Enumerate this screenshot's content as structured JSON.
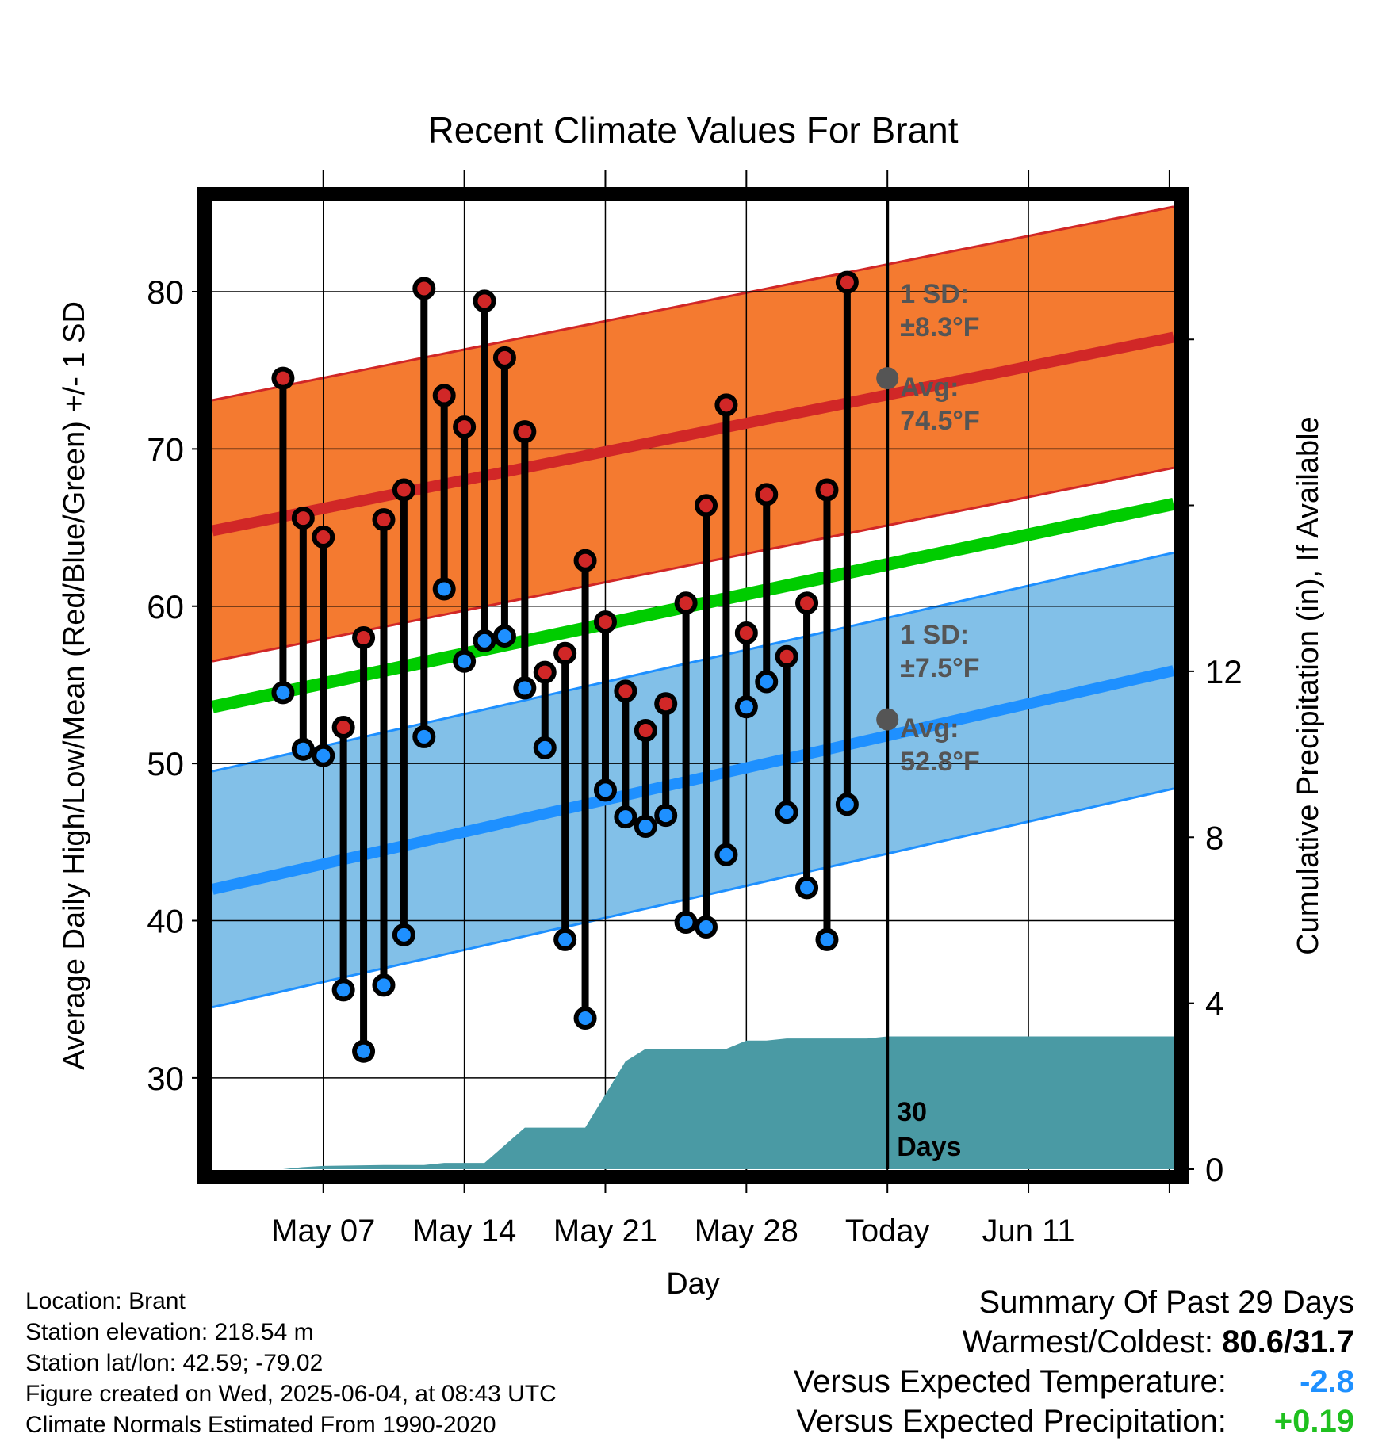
{
  "chart_data": {
    "type": "line",
    "title": "Recent Climate Values For Brant",
    "xlabel": "Day",
    "ylabel": "Average Daily High/Low/Mean (Red/Blue/Green) +/- 1 SD",
    "y2label": "Cumulative Precipitation (in), If Available",
    "x_range_days": [
      -33.5,
      14.2
    ],
    "x_ticks": [
      {
        "day": -28,
        "label": "May 07"
      },
      {
        "day": -21,
        "label": "May 14"
      },
      {
        "day": -14,
        "label": "May 21"
      },
      {
        "day": -7,
        "label": "May 28"
      },
      {
        "day": 0,
        "label": "Today"
      },
      {
        "day": 7,
        "label": "Jun 11"
      }
    ],
    "ylim": [
      24.2,
      86.2
    ],
    "y_ticks": [
      30,
      40,
      50,
      60,
      70,
      80
    ],
    "y2lim": [
      0,
      23.5
    ],
    "y2_ticks": [
      0,
      4,
      8,
      12
    ],
    "grid": true,
    "today_line_label": "30\nDays",
    "high_normal": {
      "start": 64.8,
      "end": 77.1,
      "sd": 8.3
    },
    "low_normal": {
      "start": 42.0,
      "end": 55.9,
      "sd": 7.5
    },
    "mean_normal": {
      "start": 53.6,
      "end": 66.5
    },
    "high_note": {
      "sd_label": "1 SD:",
      "sd_value": "±8.3°F",
      "avg_label": "Avg:",
      "avg_value": "74.5°F",
      "avg": 74.5
    },
    "low_note": {
      "sd_label": "1 SD:",
      "sd_value": "±7.5°F",
      "avg_label": "Avg:",
      "avg_value": "52.8°F",
      "avg": 52.8
    },
    "daily": {
      "days": [
        -30,
        -29,
        -28,
        -27,
        -26,
        -25,
        -24,
        -23,
        -22,
        -21,
        -20,
        -19,
        -18,
        -17,
        -16,
        -15,
        -14,
        -13,
        -12,
        -11,
        -10,
        -9,
        -8,
        -7,
        -6,
        -5,
        -4,
        -3,
        -2
      ],
      "highs": [
        74.5,
        65.6,
        64.4,
        52.3,
        58.0,
        65.5,
        67.4,
        80.2,
        73.4,
        71.4,
        79.4,
        75.8,
        71.1,
        55.8,
        57.0,
        62.9,
        59.0,
        54.6,
        52.1,
        53.8,
        60.2,
        66.4,
        72.8,
        58.3,
        67.1,
        56.8,
        60.2,
        67.4,
        80.6
      ],
      "lows": [
        54.5,
        50.9,
        50.5,
        35.6,
        31.7,
        35.9,
        39.1,
        51.7,
        61.1,
        56.5,
        57.8,
        58.1,
        54.8,
        51.0,
        38.8,
        33.8,
        48.3,
        46.6,
        46.0,
        46.7,
        39.9,
        39.6,
        44.2,
        53.6,
        55.2,
        46.9,
        42.1,
        38.8,
        47.4
      ]
    },
    "precip": {
      "days": [
        -30,
        -29,
        -28,
        -25,
        -24,
        -23,
        -22,
        -21,
        -20,
        -18,
        -17,
        -16,
        -15,
        -13,
        -12,
        -11,
        -10,
        -9,
        -8,
        -7,
        -6,
        -5,
        -4,
        -3,
        -2,
        -1,
        0,
        14.2
      ],
      "values": [
        0.0,
        0.05,
        0.08,
        0.1,
        0.1,
        0.1,
        0.15,
        0.15,
        0.15,
        1.0,
        1.0,
        1.0,
        1.0,
        2.6,
        2.9,
        2.9,
        2.9,
        2.9,
        2.9,
        3.1,
        3.1,
        3.15,
        3.15,
        3.15,
        3.15,
        3.15,
        3.2,
        3.2
      ]
    }
  },
  "info": {
    "location": "Location: Brant",
    "elevation": "Station elevation: 218.54 m",
    "latlon": "Station lat/lon: 42.59; -79.02",
    "created": "Figure created on Wed, 2025-06-04, at 08:43 UTC",
    "normals": "Climate Normals Estimated From 1990-2020"
  },
  "summary": {
    "title": "Summary Of Past 29 Days",
    "warm_cold_label": "Warmest/Coldest:",
    "warm_cold_value": "80.6/31.7",
    "temp_label": "Versus Expected Temperature:",
    "temp_value": "-2.8",
    "temp_color": "#1e90ff",
    "precip_label": "Versus Expected Precipitation:",
    "precip_value": "+0.19",
    "precip_color": "#1fc01f"
  },
  "colors": {
    "high_band": "#f47a30",
    "high_line": "#d12727",
    "low_band": "#82c0e8",
    "low_line": "#1e90ff",
    "mean_line": "#00cc00",
    "precip_fill": "#4a9aa4",
    "marker_high": "#d12727",
    "marker_low": "#1e90ff",
    "note_text": "#555555"
  }
}
